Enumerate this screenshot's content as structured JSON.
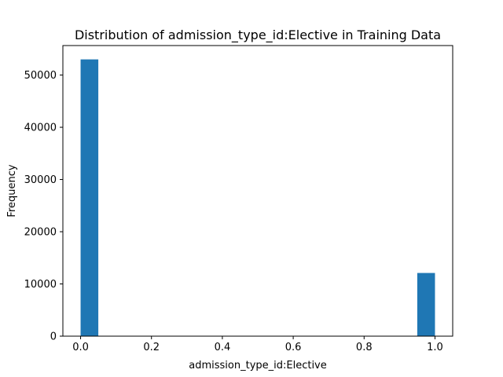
{
  "chart_data": {
    "type": "bar",
    "title": "Distribution of admission_type_id:Elective in Training Data",
    "xlabel": "admission_type_id:Elective",
    "ylabel": "Frequency",
    "xlim": [
      -0.05,
      1.05
    ],
    "ylim": [
      0,
      55650
    ],
    "x_ticks": [
      0.0,
      0.2,
      0.4,
      0.6,
      0.8,
      1.0
    ],
    "x_tick_labels": [
      "0.0",
      "0.2",
      "0.4",
      "0.6",
      "0.8",
      "1.0"
    ],
    "y_ticks": [
      0,
      10000,
      20000,
      30000,
      40000,
      50000
    ],
    "y_tick_labels": [
      "0",
      "10000",
      "20000",
      "30000",
      "40000",
      "50000"
    ],
    "bins": [
      {
        "x_start": 0.0,
        "x_end": 0.05,
        "value": 53000
      },
      {
        "x_start": 0.95,
        "x_end": 1.0,
        "value": 12100
      }
    ],
    "bar_color": "#1f77b4",
    "grid": false,
    "legend": "none"
  }
}
